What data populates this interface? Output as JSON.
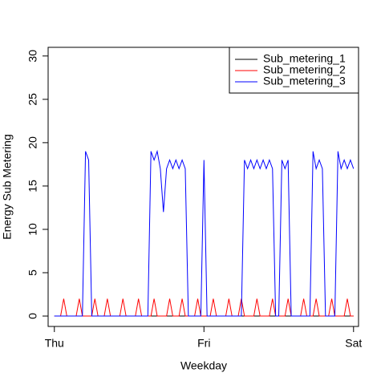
{
  "chart_data": {
    "type": "line",
    "xlabel": "Weekday",
    "ylabel": "Energy Sub Metering",
    "x": [
      0,
      0.5,
      1,
      1.5,
      2,
      2.5,
      3,
      3.5,
      4,
      4.5,
      5,
      5.5,
      6,
      6.5,
      7,
      7.5,
      8,
      8.5,
      9,
      9.5,
      10,
      10.5,
      11,
      11.5,
      12,
      12.5,
      13,
      13.5,
      14,
      14.5,
      15,
      15.5,
      16,
      16.5,
      17,
      17.5,
      18,
      18.5,
      19,
      19.5,
      20,
      20.5,
      21,
      21.5,
      22,
      22.5,
      23,
      23.5,
      24,
      24.5,
      25,
      25.5,
      26,
      26.5,
      27,
      27.5,
      28,
      28.5,
      29,
      29.5,
      30,
      30.5,
      31,
      31.5,
      32,
      32.5,
      33,
      33.5,
      34,
      34.5,
      35,
      35.5,
      36,
      36.5,
      37,
      37.5,
      38,
      38.5,
      39,
      39.5,
      40,
      40.5,
      41,
      41.5,
      42,
      42.5,
      43,
      43.5,
      44,
      44.5,
      45,
      45.5,
      46,
      46.5,
      47,
      47.5,
      48
    ],
    "series": [
      {
        "name": "Sub_metering_1",
        "color": "#000000",
        "values": [
          0,
          0,
          0,
          0,
          0,
          0,
          0,
          0,
          0,
          0,
          0,
          0,
          0,
          0,
          0,
          0,
          0,
          0,
          0,
          0,
          0,
          0,
          0,
          0,
          0,
          0,
          0,
          0,
          0,
          0,
          0,
          0,
          0,
          0,
          0,
          0,
          0,
          0,
          0,
          0,
          0,
          0,
          0,
          0,
          0,
          0,
          0,
          0,
          0,
          0,
          0,
          0,
          0,
          0,
          0,
          0,
          0,
          0,
          0,
          0,
          0,
          0,
          0,
          0,
          0,
          0,
          0,
          0,
          0,
          0,
          0,
          0,
          0,
          0,
          0,
          0,
          0,
          0,
          0,
          0,
          0,
          0,
          0,
          0,
          0,
          0,
          0,
          0,
          0,
          0,
          0,
          0,
          0,
          0,
          0,
          0,
          0
        ]
      },
      {
        "name": "Sub_metering_2",
        "color": "#ff0000",
        "values": [
          0,
          0,
          0,
          2,
          0,
          0,
          0,
          0,
          2,
          0,
          0,
          0,
          0,
          2,
          0,
          0,
          0,
          2,
          0,
          0,
          0,
          0,
          2,
          0,
          0,
          0,
          0,
          2,
          0,
          0,
          0,
          0,
          2,
          0,
          0,
          0,
          0,
          2,
          0,
          0,
          0,
          2,
          0,
          0,
          0,
          0,
          2,
          0,
          0,
          0,
          0,
          2,
          0,
          0,
          0,
          0,
          2,
          0,
          0,
          0,
          2,
          0,
          0,
          0,
          0,
          2,
          0,
          0,
          0,
          0,
          2,
          0,
          0,
          0,
          0,
          2,
          0,
          0,
          0,
          0,
          2,
          0,
          0,
          0,
          2,
          0,
          0,
          0,
          0,
          2,
          0,
          0,
          0,
          0,
          2,
          0,
          0
        ]
      },
      {
        "name": "Sub_metering_3",
        "color": "#0000ff",
        "values": [
          0,
          0,
          0,
          0,
          0,
          0,
          0,
          0,
          0,
          0,
          19,
          18,
          0,
          0,
          0,
          0,
          0,
          0,
          0,
          0,
          0,
          0,
          0,
          0,
          0,
          0,
          0,
          0,
          0,
          0,
          0,
          19,
          18,
          19,
          17,
          12,
          17,
          18,
          17,
          18,
          17,
          18,
          17,
          0,
          0,
          0,
          0,
          0,
          18,
          0,
          0,
          0,
          0,
          0,
          0,
          0,
          0,
          0,
          0,
          0,
          0,
          18,
          17,
          18,
          17,
          18,
          17,
          18,
          17,
          18,
          17,
          0,
          0,
          18,
          17,
          18,
          0,
          0,
          0,
          0,
          0,
          0,
          0,
          19,
          17,
          18,
          17,
          0,
          0,
          0,
          0,
          19,
          17,
          18,
          17,
          18,
          17
        ]
      }
    ],
    "xlim": [
      -1,
      48.8
    ],
    "xticks": [
      {
        "value": 0,
        "label": "Thu"
      },
      {
        "value": 24,
        "label": "Fri"
      },
      {
        "value": 48,
        "label": "Sat"
      }
    ],
    "ylim": [
      -1.2,
      31
    ],
    "yticks": [
      0,
      5,
      10,
      15,
      20,
      25,
      30
    ],
    "legend": "top-right"
  }
}
